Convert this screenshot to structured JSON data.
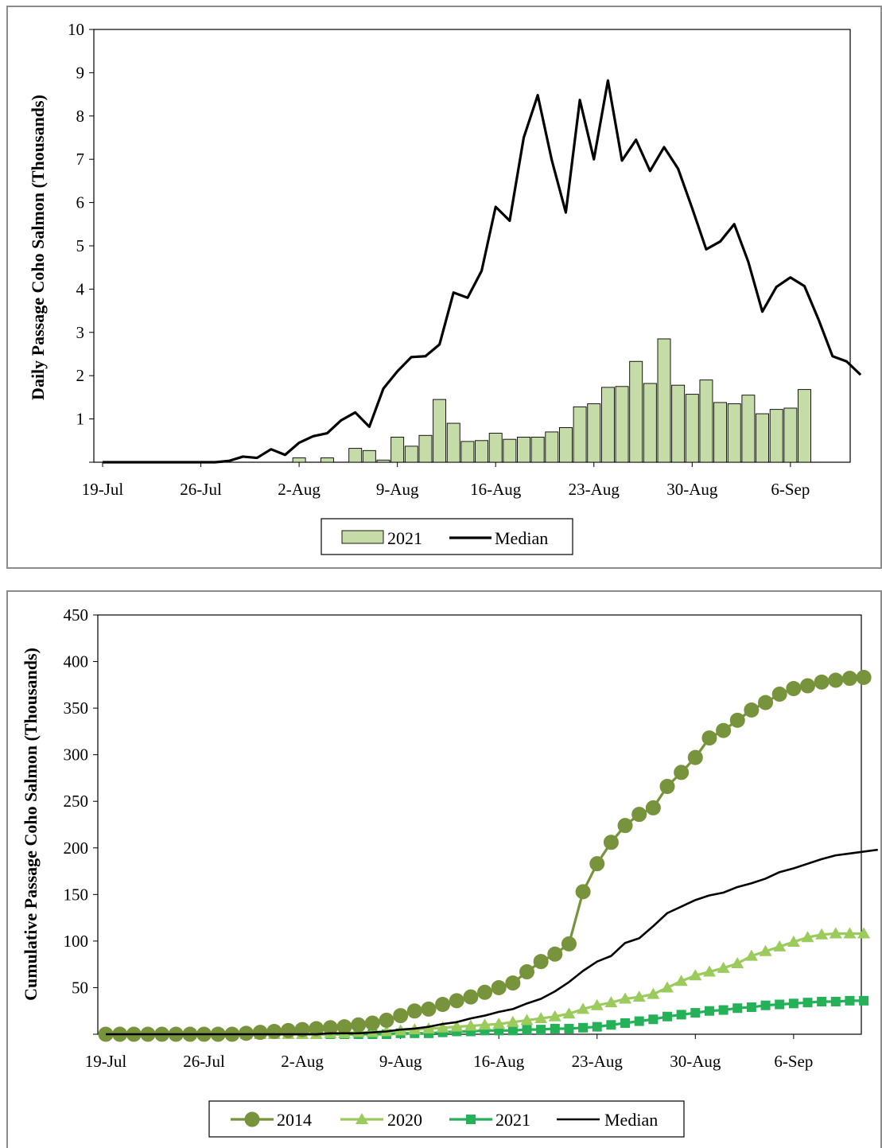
{
  "chart_data": [
    {
      "type": "bar",
      "ylabel": "Daily Passage Coho Salmon (Thousands)",
      "xlabel": "",
      "ylim": [
        0,
        10
      ],
      "yticks": [
        1,
        2,
        3,
        4,
        5,
        6,
        7,
        8,
        9,
        10
      ],
      "x_tick_labels": [
        "19-Jul",
        "26-Jul",
        "2-Aug",
        "9-Aug",
        "16-Aug",
        "23-Aug",
        "30-Aug",
        "6-Sep"
      ],
      "x_start": "19-Jul",
      "legend": {
        "position": "bottom",
        "entries": [
          "2021",
          "Median"
        ]
      },
      "grid": false,
      "series": [
        {
          "name": "2021",
          "kind": "bar",
          "color": "#c6dca8",
          "values": [
            0,
            0,
            0,
            0,
            0,
            0,
            0,
            0,
            0,
            0,
            0,
            0,
            0,
            0,
            0.1,
            0,
            0.1,
            0,
            0.32,
            0.27,
            0.05,
            0.58,
            0.37,
            0.62,
            1.45,
            0.9,
            0.48,
            0.5,
            0.67,
            0.53,
            0.58,
            0.58,
            0.7,
            0.8,
            1.28,
            1.35,
            1.73,
            1.75,
            2.33,
            1.82,
            2.85,
            1.78,
            1.57,
            1.9,
            1.38,
            1.35,
            1.55,
            1.12,
            1.22,
            1.25,
            1.68
          ]
        },
        {
          "name": "Median",
          "kind": "line",
          "color": "#000000",
          "values": [
            0,
            0,
            0,
            0,
            0,
            0,
            0,
            0,
            0,
            0.03,
            0.13,
            0.1,
            0.3,
            0.17,
            0.45,
            0.6,
            0.67,
            0.97,
            1.15,
            0.82,
            1.7,
            2.1,
            2.43,
            2.45,
            2.72,
            3.92,
            3.8,
            4.42,
            5.9,
            5.58,
            7.5,
            8.48,
            6.98,
            5.77,
            8.37,
            7.0,
            8.82,
            6.97,
            7.45,
            6.73,
            7.28,
            6.78,
            5.87,
            4.92,
            5.1,
            5.5,
            4.63,
            3.48,
            4.05,
            4.27,
            4.07,
            3.3,
            2.45,
            2.33,
            2.02
          ]
        }
      ]
    },
    {
      "type": "line",
      "ylabel": "Cumulative Passage Coho Salmon (Thousands)",
      "xlabel": "",
      "ylim": [
        0,
        450
      ],
      "yticks": [
        50,
        100,
        150,
        200,
        250,
        300,
        350,
        400,
        450
      ],
      "x_tick_labels": [
        "19-Jul",
        "26-Jul",
        "2-Aug",
        "9-Aug",
        "16-Aug",
        "23-Aug",
        "30-Aug",
        "6-Sep"
      ],
      "x_start": "19-Jul",
      "legend": {
        "position": "bottom",
        "entries": [
          "2014",
          "2020",
          "2021",
          "Median"
        ]
      },
      "grid": false,
      "series": [
        {
          "name": "2014",
          "marker": "circle",
          "color": "#77933c",
          "values": [
            0,
            0,
            0,
            0,
            0,
            0,
            0,
            0,
            0,
            0,
            1,
            2,
            3,
            4,
            5,
            6,
            7,
            8,
            10,
            12,
            15,
            20,
            25,
            27,
            32,
            36,
            40,
            45,
            50,
            55,
            67,
            78,
            86,
            97,
            153,
            183,
            206,
            224,
            236,
            243,
            266,
            281,
            297,
            318,
            326,
            337,
            348,
            356,
            365,
            371,
            374,
            378,
            380,
            382,
            383
          ]
        },
        {
          "name": "2020",
          "marker": "triangle",
          "color": "#9bcb5c",
          "values": [
            0,
            0,
            0,
            0,
            0,
            0,
            0,
            0,
            0,
            0,
            0,
            0,
            0,
            0,
            0,
            0,
            1,
            1,
            2,
            2,
            3,
            4,
            5,
            6,
            7,
            8,
            9,
            10,
            11,
            13,
            15,
            17,
            19,
            22,
            27,
            31,
            34,
            38,
            40,
            43,
            50,
            57,
            63,
            67,
            71,
            76,
            84,
            89,
            94,
            99,
            104,
            107,
            108,
            108,
            108
          ]
        },
        {
          "name": "2021",
          "marker": "square",
          "color": "#24b158",
          "values": [
            0,
            0,
            0,
            0,
            0,
            0,
            0,
            0,
            0,
            0,
            0,
            0,
            0,
            0,
            0,
            0,
            0,
            0,
            0,
            0,
            0,
            1,
            1,
            1,
            2,
            3,
            3,
            4,
            4,
            4,
            5,
            5,
            6,
            6,
            7,
            8,
            10,
            12,
            14,
            16,
            19,
            21,
            23,
            25,
            26,
            28,
            29,
            31,
            32,
            33,
            34,
            35,
            35,
            36,
            36
          ]
        },
        {
          "name": "Median",
          "marker": "none",
          "color": "#000000",
          "values": [
            0,
            0,
            0,
            0,
            0,
            0,
            0,
            0,
            0,
            0,
            0,
            0,
            0,
            0,
            0,
            0,
            1,
            1,
            1,
            2,
            3,
            5,
            6,
            8,
            11,
            13,
            17,
            20,
            24,
            27,
            33,
            38,
            46,
            56,
            68,
            78,
            84,
            98,
            103,
            116,
            130,
            137,
            144,
            149,
            152,
            158,
            162,
            167,
            174,
            178,
            183,
            188,
            192,
            194,
            196,
            198
          ]
        }
      ]
    }
  ]
}
